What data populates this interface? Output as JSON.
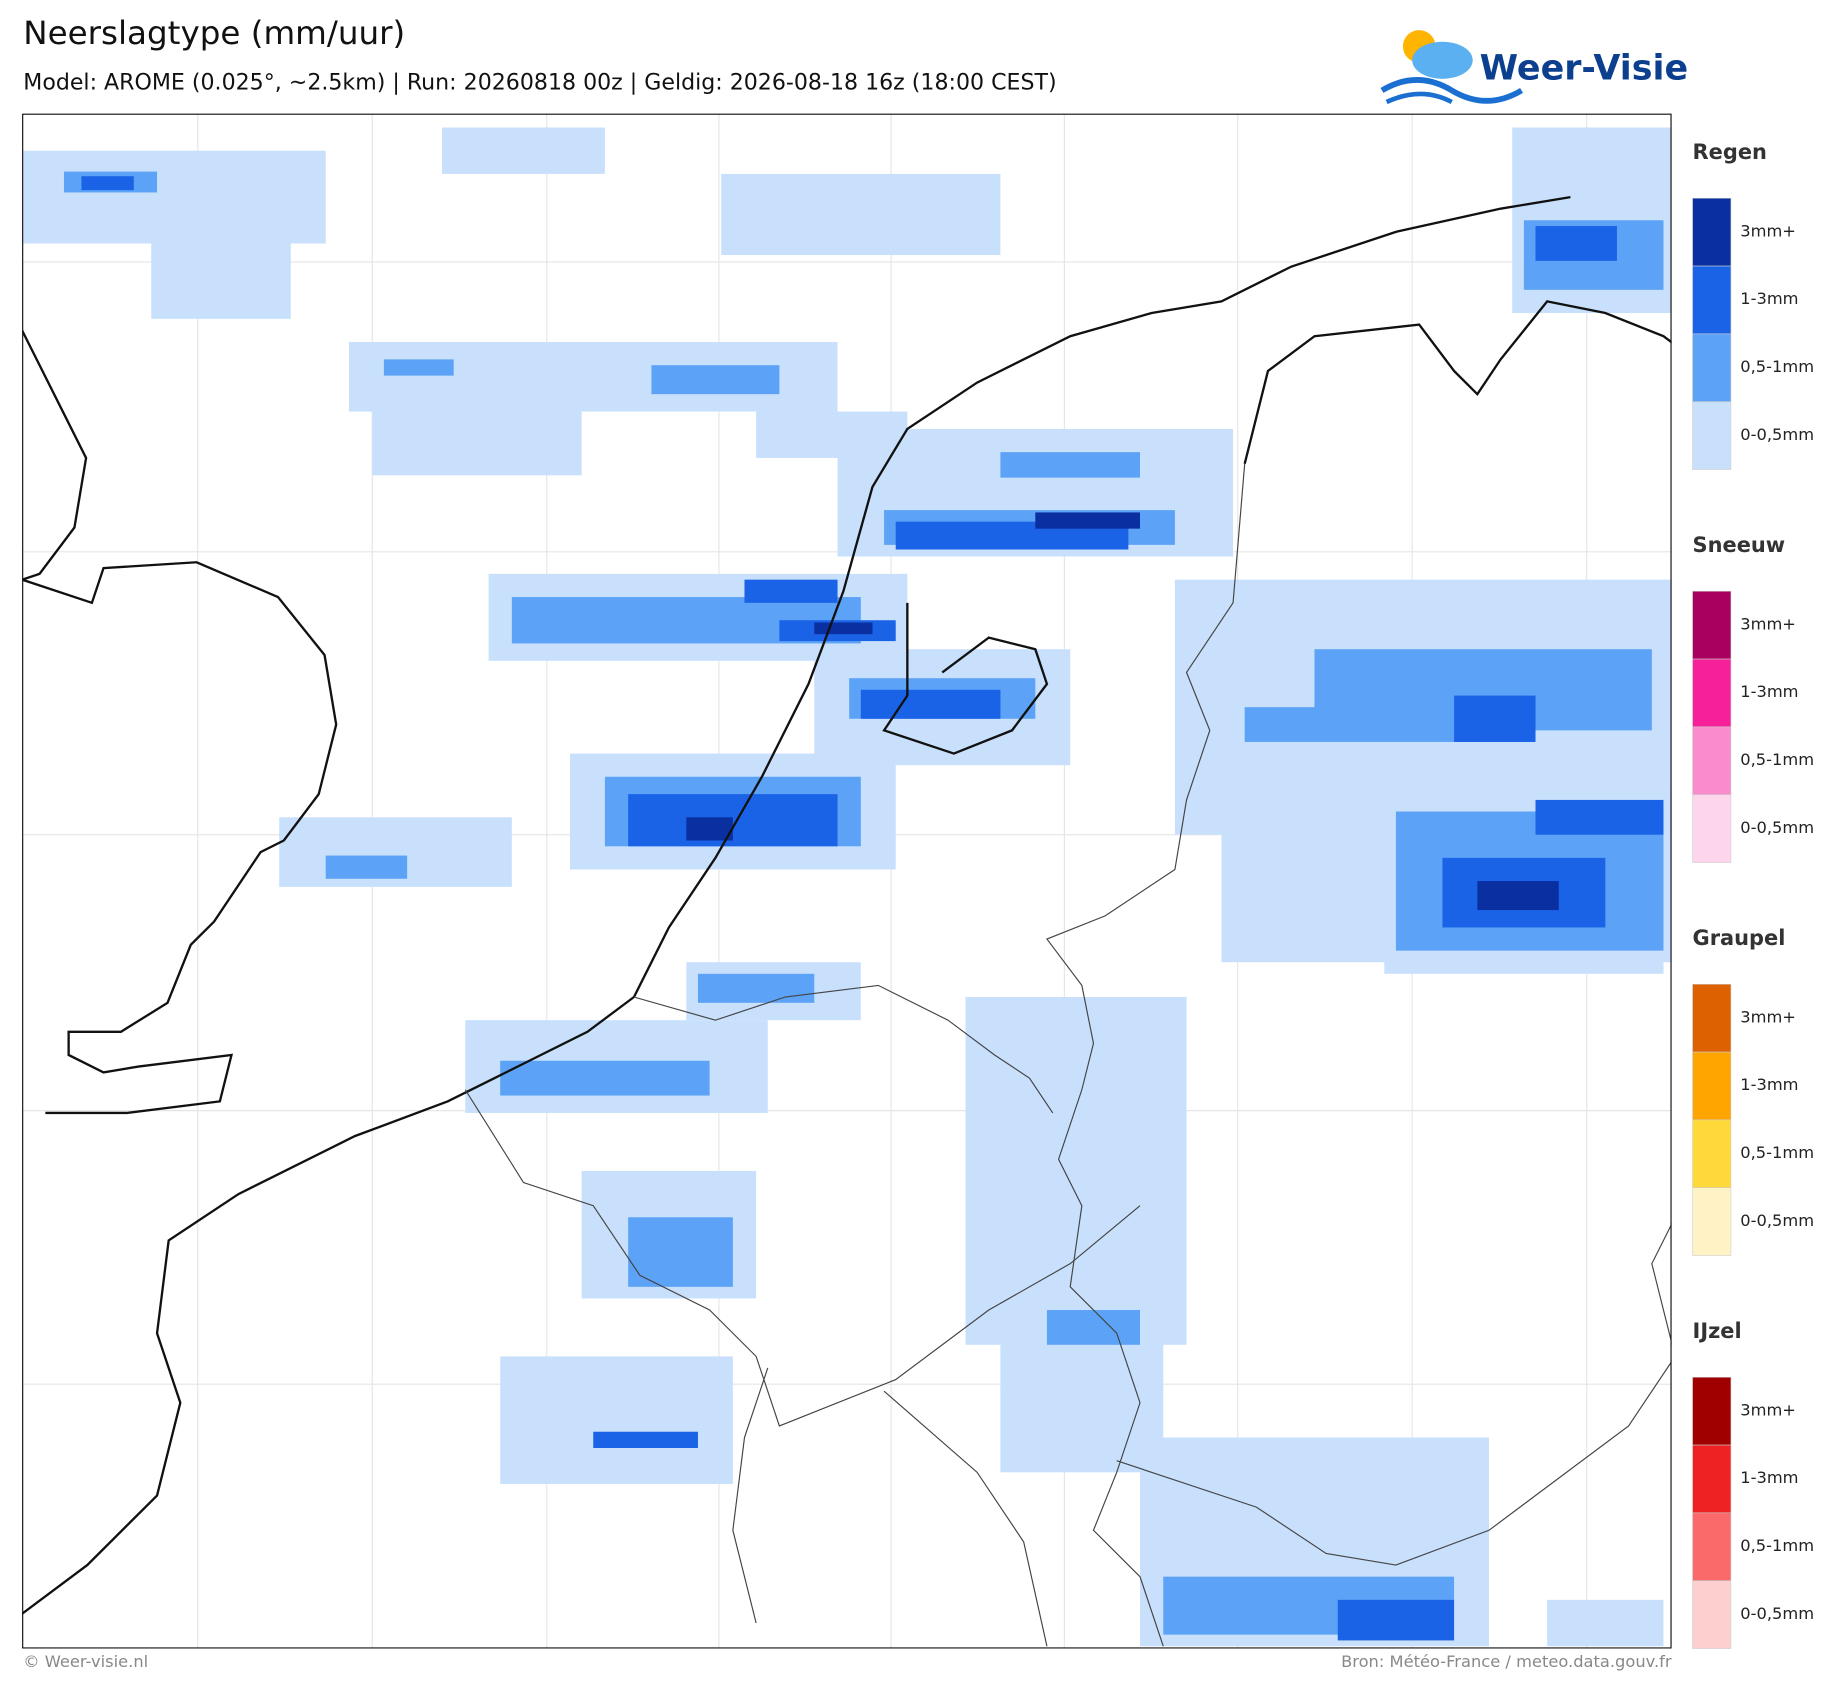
{
  "header": {
    "title": "Neerslagtype (mm/uur)",
    "subtitle": "Model: AROME (0.025°, ~2.5km)  |  Run: 20260818 00z  |  Geldig: 2026-08-18 16z (18:00 CEST)"
  },
  "logo": {
    "text": "Weer-Visie"
  },
  "legend": [
    {
      "title": "Regen",
      "items": [
        {
          "label": "3mm+",
          "color": "#0a2fa0"
        },
        {
          "label": "1-3mm",
          "color": "#1a62e6"
        },
        {
          "label": "0,5-1mm",
          "color": "#5ca2f6"
        },
        {
          "label": "0-0,5mm",
          "color": "#c8e0fb"
        }
      ]
    },
    {
      "title": "Sneeuw",
      "items": [
        {
          "label": "3mm+",
          "color": "#a8005f"
        },
        {
          "label": "1-3mm",
          "color": "#f5209a"
        },
        {
          "label": "0,5-1mm",
          "color": "#f98ccb"
        },
        {
          "label": "0-0,5mm",
          "color": "#fdd6ec"
        }
      ]
    },
    {
      "title": "Graupel",
      "items": [
        {
          "label": "3mm+",
          "color": "#dd6100"
        },
        {
          "label": "1-3mm",
          "color": "#ffa500"
        },
        {
          "label": "0,5-1mm",
          "color": "#ffd83a"
        },
        {
          "label": "0-0,5mm",
          "color": "#fff3c6"
        }
      ]
    },
    {
      "title": "IJzel",
      "items": [
        {
          "label": "3mm+",
          "color": "#a00000"
        },
        {
          "label": "1-3mm",
          "color": "#ee2222"
        },
        {
          "label": "0,5-1mm",
          "color": "#fb6a6a"
        },
        {
          "label": "0-0,5mm",
          "color": "#fdd0d0"
        }
      ]
    }
  ],
  "footer": {
    "left": "© Weer-visie.nl",
    "right": "Bron: Météo-France / meteo.data.gouv.fr"
  }
}
